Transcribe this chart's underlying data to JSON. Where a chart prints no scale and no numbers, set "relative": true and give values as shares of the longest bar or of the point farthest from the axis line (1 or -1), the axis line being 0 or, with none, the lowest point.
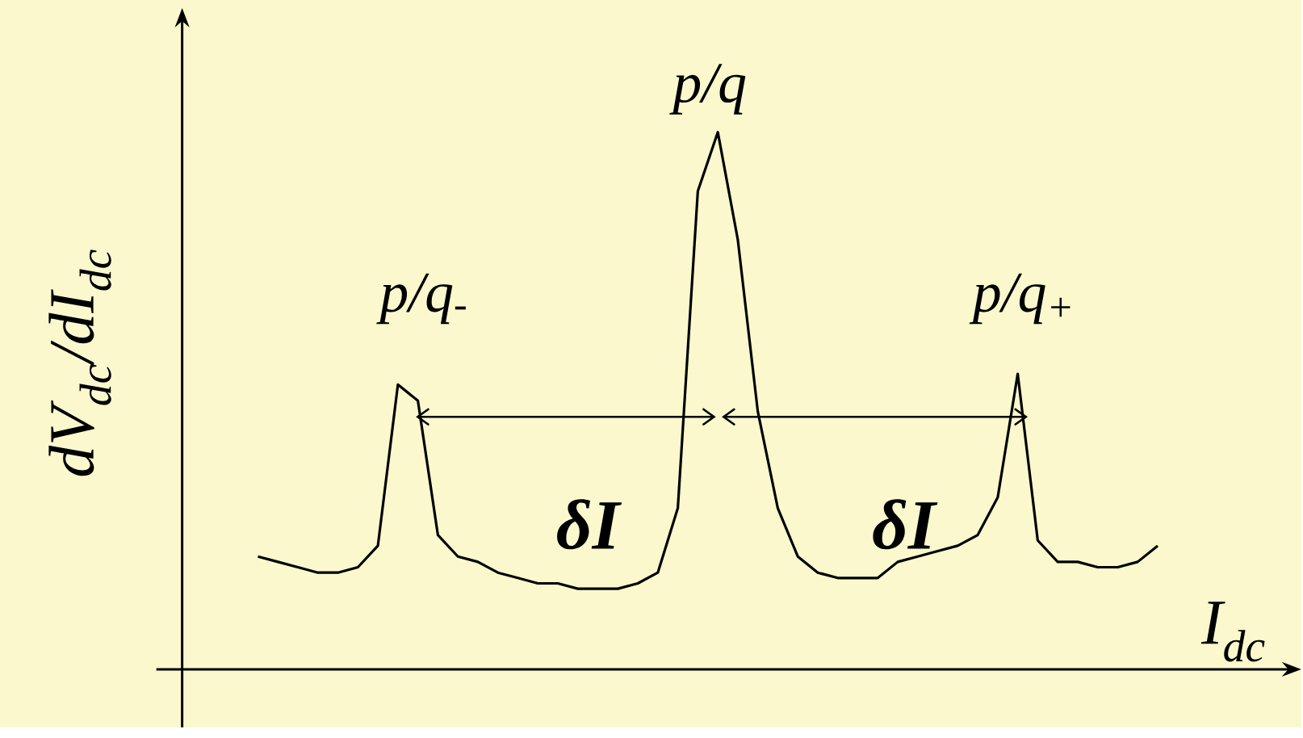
{
  "chart_data": {
    "type": "line",
    "relative": true,
    "color": "#000000",
    "xlabel": "I$_{dc}$",
    "ylabel": "dV$_{dc}$/dI$_{dc}$",
    "categories": [
      null,
      null,
      null,
      null,
      null,
      null,
      null,
      null,
      null,
      null,
      null,
      null,
      null,
      null,
      null,
      null,
      null,
      null,
      null,
      null,
      null,
      null,
      null,
      null,
      null,
      null,
      null,
      null,
      null,
      null,
      null,
      null,
      null,
      null,
      null,
      null,
      null,
      null,
      null,
      null,
      null,
      null,
      null,
      null,
      null,
      null
    ],
    "values": [
      0.21,
      0.2,
      0.19,
      0.18,
      0.18,
      0.19,
      0.23,
      0.53,
      0.5,
      0.25,
      0.21,
      0.2,
      0.18,
      0.17,
      0.16,
      0.16,
      0.15,
      0.15,
      0.15,
      0.16,
      0.18,
      0.3,
      0.89,
      1,
      0.8,
      0.48,
      0.3,
      0.21,
      0.18,
      0.17,
      0.17,
      0.17,
      0.2,
      0.21,
      0.22,
      0.23,
      0.25,
      0.32,
      0.55,
      0.24,
      0.2,
      0.2,
      0.19,
      0.19,
      0.2,
      0.23
    ],
    "annotations": [
      "p/q",
      "p/q$_{-}$",
      "p/q$_{+}$",
      "δ**I**",
      "δ**I**"
    ]
  }
}
